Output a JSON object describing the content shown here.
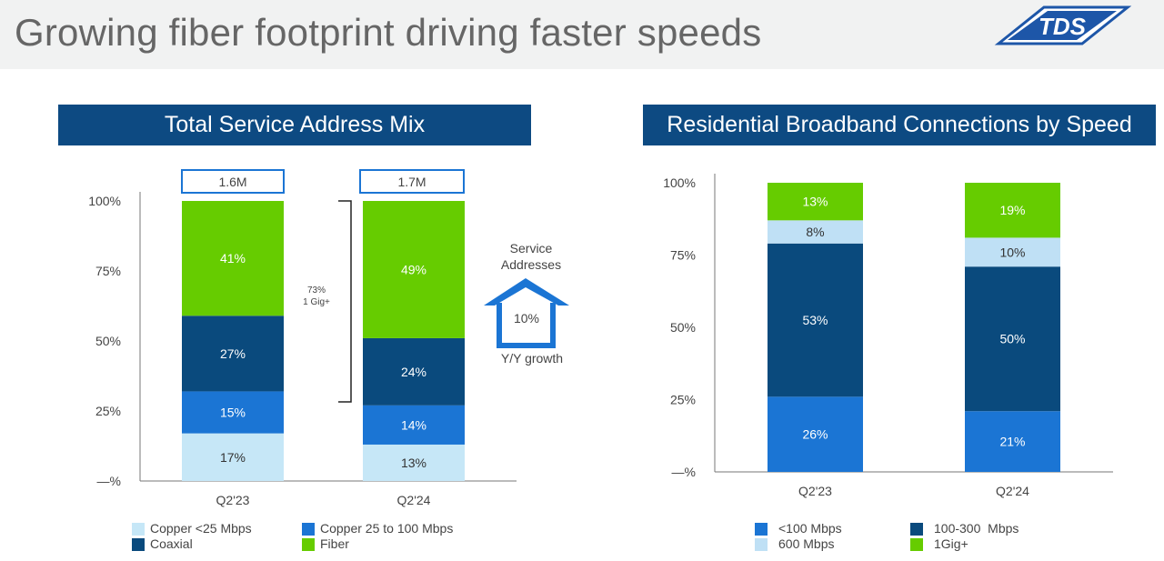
{
  "page": {
    "title": "Growing fiber footprint driving faster speeds",
    "logo_text": "TDS",
    "colors": {
      "navy": "#0d4a82",
      "copper_low": "#c6e7f7",
      "copper_mid": "#1b75d4",
      "coaxial": "#0a4a7d",
      "fiber": "#66cc00",
      "speed_600": "#bfe0f5"
    }
  },
  "left_panel": {
    "title": "Total Service Address Mix",
    "totals": [
      "1.6M",
      "1.7M"
    ],
    "bracket_label_line1": "73%",
    "bracket_label_line2": "1 Gig+",
    "growth": {
      "label_line1": "Service",
      "label_line2": "Addresses",
      "value": "10%",
      "caption": "Y/Y growth"
    },
    "legend": [
      "Copper <25 Mbps",
      "Copper 25 to 100 Mbps",
      "Coaxial",
      "Fiber"
    ]
  },
  "right_panel": {
    "title": "Residential Broadband Connections by Speed",
    "legend": [
      "<100 Mbps",
      "100-300  Mbps",
      "600 Mbps",
      "1Gig+"
    ]
  },
  "chart_data": [
    {
      "type": "bar",
      "stacked": true,
      "title": "Total Service Address Mix",
      "categories": [
        "Q2'23",
        "Q2'24"
      ],
      "ylim": [
        0,
        100
      ],
      "yticks": [
        "—%",
        "25%",
        "50%",
        "75%",
        "100%"
      ],
      "series": [
        {
          "name": "Copper <25 Mbps",
          "values": [
            17,
            13
          ],
          "labels": [
            "17%",
            "13%"
          ],
          "color": "#c6e7f7",
          "label_color": "#333333"
        },
        {
          "name": "Copper 25 to 100 Mbps",
          "values": [
            15,
            14
          ],
          "labels": [
            "15%",
            "14%"
          ],
          "color": "#1b75d4",
          "label_color": "#ffffff"
        },
        {
          "name": "Coaxial",
          "values": [
            27,
            24
          ],
          "labels": [
            "27%",
            "24%"
          ],
          "color": "#0a4a7d",
          "label_color": "#ffffff"
        },
        {
          "name": "Fiber",
          "values": [
            41,
            49
          ],
          "labels": [
            "41%",
            "49%"
          ],
          "color": "#66cc00",
          "label_color": "#ffffff"
        }
      ]
    },
    {
      "type": "bar",
      "stacked": true,
      "title": "Residential Broadband Connections by Speed",
      "categories": [
        "Q2'23",
        "Q2'24"
      ],
      "ylim": [
        0,
        100
      ],
      "yticks": [
        "—%",
        "25%",
        "50%",
        "75%",
        "100%"
      ],
      "series": [
        {
          "name": "<100 Mbps",
          "values": [
            26,
            21
          ],
          "labels": [
            "26%",
            "21%"
          ],
          "color": "#1b75d4",
          "label_color": "#ffffff"
        },
        {
          "name": "100-300  Mbps",
          "values": [
            53,
            50
          ],
          "labels": [
            "53%",
            "50%"
          ],
          "color": "#0a4a7d",
          "label_color": "#ffffff"
        },
        {
          "name": "600 Mbps",
          "values": [
            8,
            10
          ],
          "labels": [
            "8%",
            "10%"
          ],
          "color": "#bfe0f5",
          "label_color": "#333333"
        },
        {
          "name": "1Gig+",
          "values": [
            13,
            19
          ],
          "labels": [
            "13%",
            "19%"
          ],
          "color": "#66cc00",
          "label_color": "#ffffff"
        }
      ]
    }
  ]
}
